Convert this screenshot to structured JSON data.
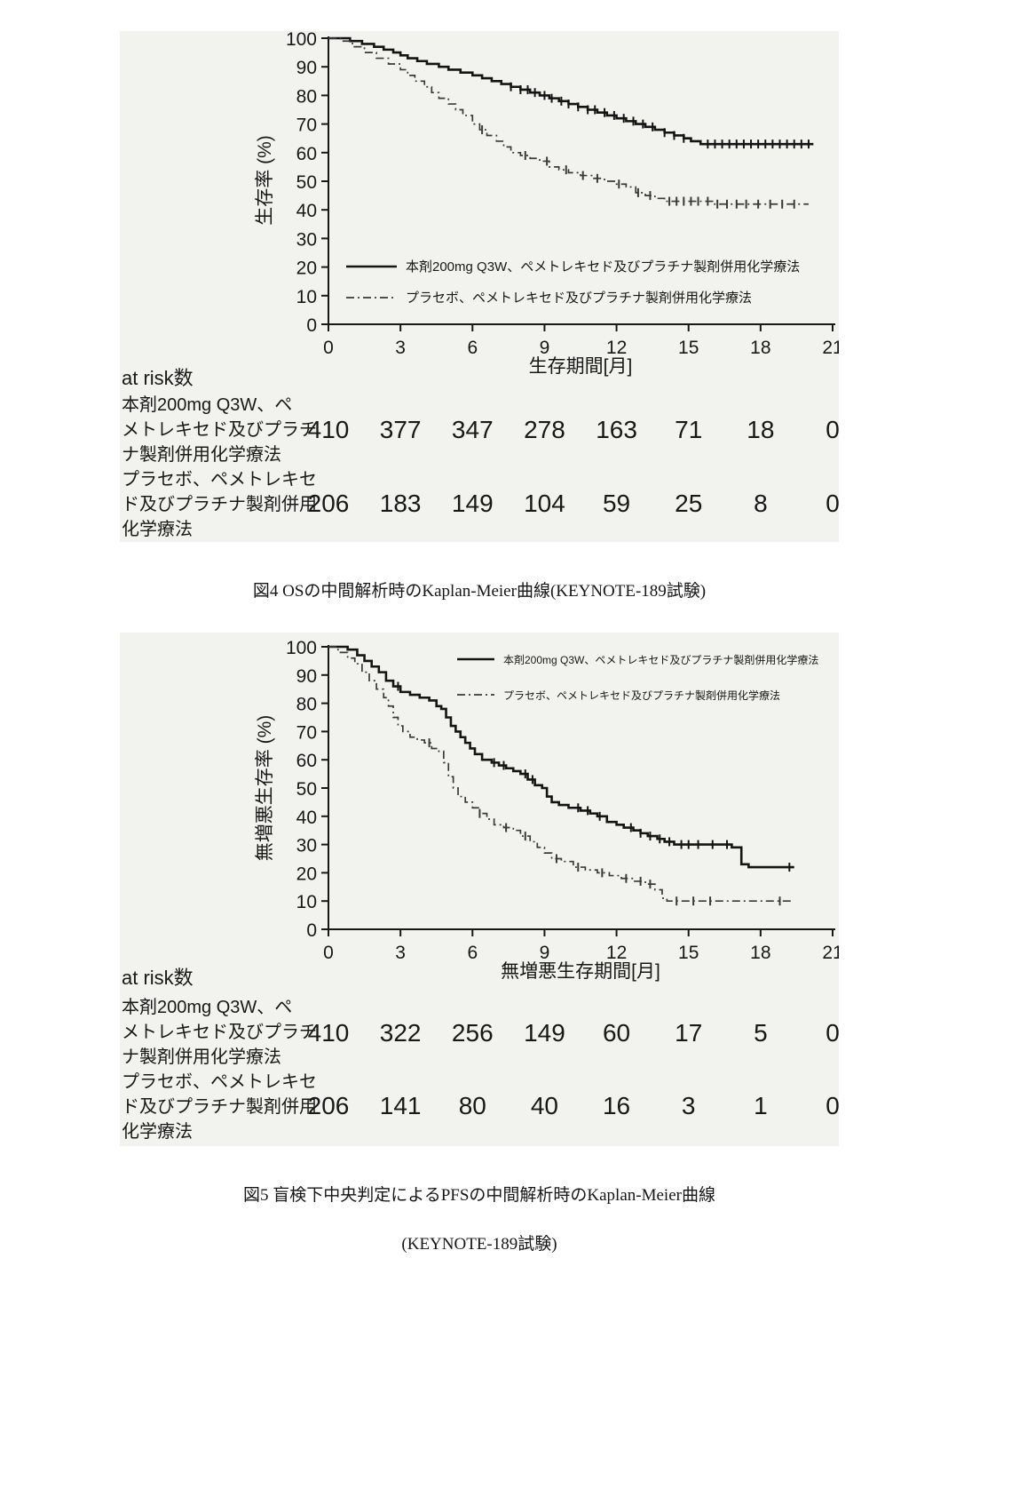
{
  "page": {
    "background": "#ffffff",
    "panel_background": "#f2f2ef",
    "ink_color": "#1a1a1a"
  },
  "captions": {
    "fig4": "図4  OSの中間解析時のKaplan-Meier曲線(KEYNOTE-189試験)",
    "fig5_line1": "図5  盲検下中央判定によるPFSの中間解析時のKaplan-Meier曲線",
    "fig5_line2": "(KEYNOTE-189試験)"
  },
  "chart_data": [
    {
      "type": "line",
      "subtype": "kaplan-meier-step",
      "title": "図4  OSの中間解析時のKaplan-Meier曲線(KEYNOTE-189試験)",
      "xlabel": "生存期間[月]",
      "ylabel": "生存率 (%)",
      "xlim": [
        0,
        21
      ],
      "ylim": [
        0,
        100
      ],
      "xticks": [
        0,
        3,
        6,
        9,
        12,
        15,
        18,
        21
      ],
      "yticks": [
        0,
        10,
        20,
        30,
        40,
        50,
        60,
        70,
        80,
        90,
        100
      ],
      "grid": false,
      "legend_position": "inside-lower-left",
      "series": [
        {
          "name": "本剤200mg Q3W、ペメトレキセド及びプラチナ製剤併用化学療法",
          "style": "solid",
          "color": "#141414",
          "points": [
            [
              0,
              100
            ],
            [
              0.9,
              99
            ],
            [
              1.4,
              98
            ],
            [
              1.9,
              97
            ],
            [
              2.3,
              96
            ],
            [
              2.7,
              95
            ],
            [
              3,
              94
            ],
            [
              3.3,
              93
            ],
            [
              3.7,
              92
            ],
            [
              4.1,
              91
            ],
            [
              4.6,
              90
            ],
            [
              5,
              89
            ],
            [
              5.5,
              88
            ],
            [
              6,
              87
            ],
            [
              6.4,
              86
            ],
            [
              6.8,
              85
            ],
            [
              7.2,
              84
            ],
            [
              7.6,
              83
            ],
            [
              8,
              82
            ],
            [
              8.4,
              81
            ],
            [
              8.8,
              80
            ],
            [
              9.2,
              79
            ],
            [
              9.6,
              78
            ],
            [
              10,
              77
            ],
            [
              10.4,
              76
            ],
            [
              10.8,
              75
            ],
            [
              11.2,
              74
            ],
            [
              11.6,
              73
            ],
            [
              12,
              72
            ],
            [
              12.4,
              71
            ],
            [
              12.8,
              70
            ],
            [
              13.2,
              69
            ],
            [
              13.6,
              68
            ],
            [
              14,
              67
            ],
            [
              14.4,
              66
            ],
            [
              14.8,
              65
            ],
            [
              15.1,
              64
            ],
            [
              15.5,
              63
            ],
            [
              20.2,
              63
            ]
          ],
          "censor_x": [
            7.6,
            8,
            8.3,
            8.6,
            9,
            9.3,
            9.7,
            10,
            10.4,
            10.8,
            11.1,
            11.5,
            11.9,
            12.3,
            12.7,
            13.1,
            13.5,
            14,
            14.4,
            14.8,
            15.8,
            16.1,
            16.4,
            16.7,
            17,
            17.3,
            17.6,
            17.9,
            18.2,
            18.5,
            18.8,
            19.1,
            19.4,
            19.7,
            20
          ]
        },
        {
          "name": "プラセボ、ペメトレキセド及びプラチナ製剤併用化学療法",
          "style": "dashed",
          "color": "#3a3a3a",
          "points": [
            [
              0,
              100
            ],
            [
              0.5,
              99
            ],
            [
              1,
              97
            ],
            [
              1.5,
              95
            ],
            [
              2,
              93
            ],
            [
              2.5,
              91
            ],
            [
              3,
              89
            ],
            [
              3.3,
              87
            ],
            [
              3.6,
              85
            ],
            [
              4,
              83
            ],
            [
              4.3,
              81
            ],
            [
              4.6,
              79
            ],
            [
              5,
              77
            ],
            [
              5.3,
              75
            ],
            [
              5.6,
              73
            ],
            [
              6,
              70
            ],
            [
              6.3,
              68
            ],
            [
              6.6,
              66
            ],
            [
              7,
              64
            ],
            [
              7.3,
              62
            ],
            [
              7.6,
              60
            ],
            [
              8,
              59
            ],
            [
              8.4,
              58
            ],
            [
              8.8,
              57
            ],
            [
              9.2,
              55
            ],
            [
              9.6,
              54
            ],
            [
              10,
              53
            ],
            [
              10.5,
              52
            ],
            [
              11,
              51
            ],
            [
              11.5,
              50
            ],
            [
              12,
              49
            ],
            [
              12.4,
              48
            ],
            [
              12.8,
              46
            ],
            [
              13.2,
              45
            ],
            [
              13.6,
              44
            ],
            [
              14,
              43
            ],
            [
              15.5,
              43
            ],
            [
              16,
              42
            ],
            [
              20,
              42
            ]
          ],
          "censor_x": [
            6.4,
            8.2,
            9.1,
            9.9,
            10.6,
            11.2,
            12.1,
            12.9,
            13.4,
            14.2,
            14.5,
            14.8,
            15.1,
            15.4,
            15.8,
            16.2,
            16.6,
            17,
            17.4,
            17.9,
            18.4,
            18.9,
            19.4
          ]
        }
      ],
      "at_risk": {
        "title": "at risk数",
        "rows": [
          {
            "label_lines": [
              "本剤200mg Q3W、ペ",
              "メトレキセド及びプラチ",
              "ナ製剤併用化学療法"
            ],
            "counts": [
              410,
              377,
              347,
              278,
              163,
              71,
              18,
              0
            ]
          },
          {
            "label_lines": [
              "プラセボ、ペメトレキセ",
              "ド及びプラチナ製剤併用",
              "化学療法"
            ],
            "counts": [
              206,
              183,
              149,
              104,
              59,
              25,
              8,
              0
            ]
          }
        ]
      }
    },
    {
      "type": "line",
      "subtype": "kaplan-meier-step",
      "title": "図5  盲検下中央判定によるPFSの中間解析時のKaplan-Meier曲線(KEYNOTE-189試験)",
      "xlabel": "無増悪生存期間[月]",
      "ylabel": "無増悪生存率 (%)",
      "xlim": [
        0,
        21
      ],
      "ylim": [
        0,
        100
      ],
      "xticks": [
        0,
        3,
        6,
        9,
        12,
        15,
        18,
        21
      ],
      "yticks": [
        0,
        10,
        20,
        30,
        40,
        50,
        60,
        70,
        80,
        90,
        100
      ],
      "grid": false,
      "legend_position": "inside-upper-right",
      "series": [
        {
          "name": "本剤200mg Q3W、ペメトレキセド及びプラチナ製剤併用化学療法",
          "style": "solid",
          "color": "#141414",
          "points": [
            [
              0,
              100
            ],
            [
              0.8,
              99
            ],
            [
              1.2,
              97
            ],
            [
              1.5,
              95
            ],
            [
              1.8,
              93
            ],
            [
              2.1,
              91
            ],
            [
              2.4,
              88
            ],
            [
              2.7,
              86
            ],
            [
              3,
              84
            ],
            [
              3.4,
              83
            ],
            [
              3.8,
              82
            ],
            [
              4.2,
              81
            ],
            [
              4.5,
              79
            ],
            [
              4.7,
              78
            ],
            [
              4.9,
              75
            ],
            [
              5.1,
              72
            ],
            [
              5.3,
              70
            ],
            [
              5.5,
              68
            ],
            [
              5.7,
              66
            ],
            [
              5.9,
              64
            ],
            [
              6.1,
              62
            ],
            [
              6.4,
              60
            ],
            [
              6.8,
              59
            ],
            [
              7.1,
              58
            ],
            [
              7.4,
              57
            ],
            [
              7.7,
              56
            ],
            [
              8,
              55
            ],
            [
              8.3,
              53
            ],
            [
              8.6,
              51
            ],
            [
              8.9,
              50
            ],
            [
              9.1,
              47
            ],
            [
              9.3,
              45
            ],
            [
              9.6,
              44
            ],
            [
              10,
              43
            ],
            [
              10.5,
              42
            ],
            [
              10.9,
              41
            ],
            [
              11.2,
              40
            ],
            [
              11.6,
              38
            ],
            [
              12,
              37
            ],
            [
              12.3,
              36
            ],
            [
              12.7,
              35
            ],
            [
              13,
              34
            ],
            [
              13.3,
              33
            ],
            [
              13.7,
              32
            ],
            [
              14,
              31
            ],
            [
              14.4,
              30
            ],
            [
              16.4,
              30
            ],
            [
              16.8,
              29
            ],
            [
              17.2,
              23
            ],
            [
              17.5,
              22
            ],
            [
              19.4,
              22
            ]
          ],
          "censor_x": [
            2.9,
            6.9,
            7.3,
            8.2,
            8.5,
            10.4,
            10.8,
            11.3,
            12.6,
            13,
            13.4,
            13.8,
            14.2,
            14.7,
            15,
            15.4,
            16,
            16.6,
            19.2
          ]
        },
        {
          "name": "プラセボ、ペメトレキセド及びプラチナ製剤併用化学療法",
          "style": "dashed",
          "color": "#3a3a3a",
          "points": [
            [
              0,
              100
            ],
            [
              0.4,
              98
            ],
            [
              0.8,
              96
            ],
            [
              1.1,
              94
            ],
            [
              1.4,
              91
            ],
            [
              1.7,
              88
            ],
            [
              2,
              85
            ],
            [
              2.3,
              82
            ],
            [
              2.5,
              79
            ],
            [
              2.7,
              75
            ],
            [
              2.9,
              72
            ],
            [
              3.1,
              70
            ],
            [
              3.4,
              68
            ],
            [
              3.7,
              67
            ],
            [
              4,
              66
            ],
            [
              4.3,
              64
            ],
            [
              4.6,
              63
            ],
            [
              4.8,
              59
            ],
            [
              5,
              54
            ],
            [
              5.2,
              50
            ],
            [
              5.4,
              47
            ],
            [
              5.7,
              45
            ],
            [
              6,
              43
            ],
            [
              6.3,
              41
            ],
            [
              6.6,
              39
            ],
            [
              6.9,
              37
            ],
            [
              7.3,
              36
            ],
            [
              7.7,
              35
            ],
            [
              8,
              33
            ],
            [
              8.4,
              31
            ],
            [
              8.7,
              29
            ],
            [
              9,
              27
            ],
            [
              9.3,
              25
            ],
            [
              9.7,
              24
            ],
            [
              10.2,
              22
            ],
            [
              10.7,
              21
            ],
            [
              11.2,
              20
            ],
            [
              11.7,
              19
            ],
            [
              12.2,
              18
            ],
            [
              12.7,
              17
            ],
            [
              13.2,
              16
            ],
            [
              13.6,
              14
            ],
            [
              13.9,
              11
            ],
            [
              14.1,
              10
            ],
            [
              19.3,
              10
            ]
          ],
          "censor_x": [
            4.2,
            6.3,
            7.4,
            8.2,
            9.5,
            10.4,
            11.4,
            12.4,
            13,
            13.4,
            14.5,
            15.2,
            15.9,
            18.8
          ]
        }
      ],
      "at_risk": {
        "title": "at risk数",
        "rows": [
          {
            "label_lines": [
              "本剤200mg Q3W、ペ",
              "メトレキセド及びプラチ",
              "ナ製剤併用化学療法"
            ],
            "counts": [
              410,
              322,
              256,
              149,
              60,
              17,
              5,
              0
            ]
          },
          {
            "label_lines": [
              "プラセボ、ペメトレキセ",
              "ド及びプラチナ製剤併用",
              "化学療法"
            ],
            "counts": [
              206,
              141,
              80,
              40,
              16,
              3,
              1,
              0
            ]
          }
        ]
      }
    }
  ]
}
